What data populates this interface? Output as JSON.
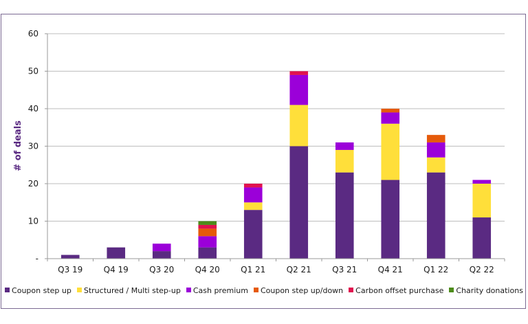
{
  "chart_data": {
    "type": "bar",
    "stacked": true,
    "title": "",
    "xlabel": "",
    "ylabel": "# of deals",
    "ylim": [
      0,
      60
    ],
    "yticks": [
      0,
      10,
      20,
      30,
      40,
      50,
      60
    ],
    "ytick_labels": [
      "-",
      "10",
      "20",
      "30",
      "40",
      "50",
      "60"
    ],
    "grid": true,
    "legend_position": "bottom",
    "categories": [
      "Q3 19",
      "Q4 19",
      "Q3 20",
      "Q4 20",
      "Q1 21",
      "Q2 21",
      "Q3 21",
      "Q4 21",
      "Q1 22",
      "Q2 22"
    ],
    "series": [
      {
        "name": "Coupon step up",
        "color": "#5a2a82",
        "values": [
          1,
          3,
          2,
          3,
          13,
          30,
          23,
          21,
          23,
          11
        ]
      },
      {
        "name": "Structured / Multi step-up",
        "color": "#ffdf3a",
        "values": [
          0,
          0,
          0,
          0,
          2,
          11,
          6,
          15,
          4,
          9
        ]
      },
      {
        "name": "Cash premium",
        "color": "#9b00d9",
        "values": [
          0,
          0,
          2,
          3,
          4,
          8,
          2,
          3,
          4,
          1
        ]
      },
      {
        "name": "Coupon step up/down",
        "color": "#e55a0a",
        "values": [
          0,
          0,
          0,
          2,
          0,
          0,
          0,
          1,
          2,
          0
        ]
      },
      {
        "name": "Carbon offset purchase",
        "color": "#e0124e",
        "values": [
          0,
          0,
          0,
          1,
          1,
          1,
          0,
          0,
          0,
          0
        ]
      },
      {
        "name": "Charity donations",
        "color": "#4d8c1a",
        "values": [
          0,
          0,
          0,
          1,
          0,
          0,
          0,
          0,
          0,
          0
        ]
      }
    ]
  }
}
